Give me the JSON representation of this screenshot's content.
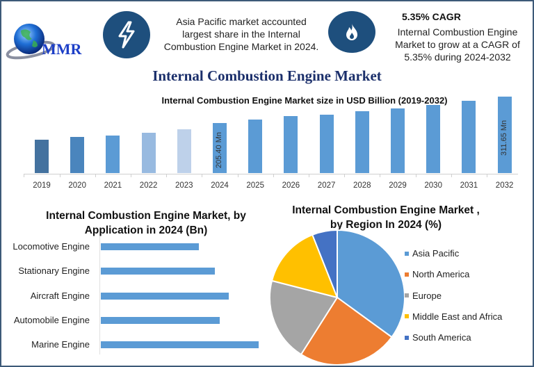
{
  "header": {
    "logo_text": "MMR",
    "insight1": {
      "icon": "lightning-bolt-icon",
      "lines": [
        "Asia Pacific market accounted",
        "largest share in the Internal",
        "Combustion Engine Market in 2024."
      ]
    },
    "insight2": {
      "icon": "flame-icon",
      "title": "5.35% CAGR",
      "lines": [
        "Internal Combustion Engine",
        "Market to grow at a CAGR of",
        "5.35% during 2024-2032"
      ]
    }
  },
  "main_title": "Internal Combustion Engine Market",
  "colors": {
    "frame": "#3d5a78",
    "icon_bg": "#1e4f7d",
    "title": "#1b2f6b",
    "bar_blue": "#5b9bd5"
  },
  "chart_data": [
    {
      "type": "bar",
      "title": "Internal Combustion Engine Market size in USD Billion (2019-2032)",
      "categories": [
        "2019",
        "2020",
        "2021",
        "2022",
        "2023",
        "2024",
        "2025",
        "2026",
        "2027",
        "2028",
        "2029",
        "2030",
        "2031",
        "2032"
      ],
      "values": [
        140,
        149,
        157,
        168,
        181,
        205.4,
        219,
        234,
        240,
        253,
        265,
        279,
        294,
        311.65
      ],
      "bar_colors": [
        "#44729f",
        "#4a85bd",
        "#5b9bd5",
        "#98bae0",
        "#bed1ea",
        "#5b9bd5",
        "#5b9bd5",
        "#5b9bd5",
        "#5b9bd5",
        "#5b9bd5",
        "#5b9bd5",
        "#5b9bd5",
        "#5b9bd5",
        "#5b9bd5"
      ],
      "annotations": [
        {
          "category": "2024",
          "text": "205.40 Mn"
        },
        {
          "category": "2032",
          "text": "311.65 Mn"
        }
      ],
      "xlabel": "",
      "ylabel": "",
      "grid": false
    },
    {
      "type": "bar",
      "orientation": "horizontal",
      "title": "Internal Combustion Engine Market, by Application in 2024 (Bn)",
      "categories": [
        "Locomotive Engine",
        "Stationary Engine",
        "Aircraft Engine",
        "Automobile Engine",
        "Marine Engine"
      ],
      "values": [
        63,
        73,
        82,
        76,
        101
      ],
      "grid": false
    },
    {
      "type": "pie",
      "title": "Internal Combustion Engine Market , by Region In 2024 (%)",
      "categories": [
        "Asia Pacific",
        "North America",
        "Europe",
        "Middle East and Africa",
        "South America"
      ],
      "values": [
        35,
        24,
        20,
        15,
        6
      ],
      "colors": [
        "#5b9bd5",
        "#ed7d31",
        "#a5a5a5",
        "#ffc000",
        "#4472c4"
      ],
      "legend_position": "right"
    }
  ],
  "bar_chart": {
    "title": "Internal Combustion Engine Market size in USD Billion (2019-2032)",
    "label_2024": "205.40 Mn",
    "label_2032": "311.65 Mn",
    "years": [
      "2019",
      "2020",
      "2021",
      "2022",
      "2023",
      "2024",
      "2025",
      "2026",
      "2027",
      "2028",
      "2029",
      "2030",
      "2031",
      "2032"
    ]
  },
  "application_chart": {
    "title_line1": "Internal Combustion Engine Market, by",
    "title_line2": "Application in 2024 (Bn)",
    "labels": [
      "Locomotive Engine",
      "Stationary Engine",
      "Aircraft Engine",
      "Automobile Engine",
      "Marine Engine"
    ]
  },
  "region_chart": {
    "title_line1": "Internal Combustion Engine Market ,",
    "title_line2": "by Region In 2024 (%)",
    "legend": [
      "Asia Pacific",
      "North America",
      "Europe",
      "Middle East and Africa",
      "South America"
    ]
  }
}
